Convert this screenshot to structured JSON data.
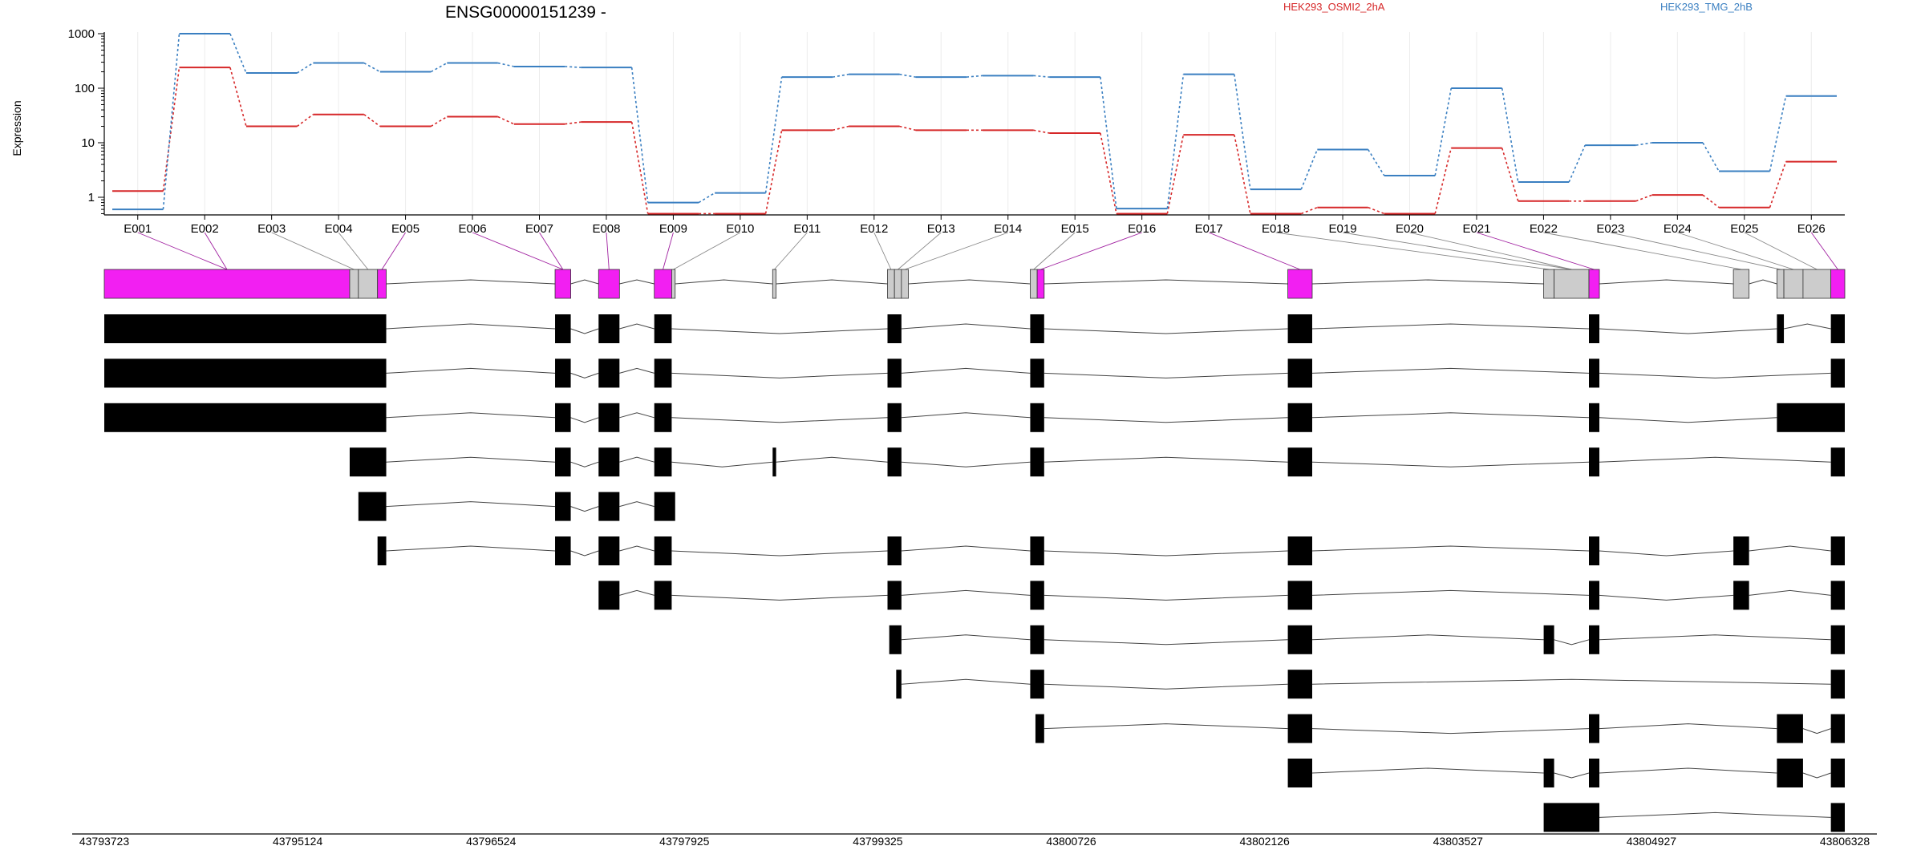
{
  "chart_data": {
    "type": "line",
    "title": "ENSG00000151239 -",
    "ylabel": "Expression",
    "y_scale": "log",
    "y_ticks": [
      1,
      10,
      100,
      1000
    ],
    "y_tick_labels": [
      "1",
      "10",
      "100",
      "1000"
    ],
    "exon_bins": [
      "E001",
      "E002",
      "E003",
      "E004",
      "E005",
      "E006",
      "E007",
      "E008",
      "E009",
      "E010",
      "E011",
      "E012",
      "E013",
      "E014",
      "E015",
      "E016",
      "E017",
      "E018",
      "E019",
      "E020",
      "E021",
      "E022",
      "E023",
      "E024",
      "E025",
      "E026"
    ],
    "series": [
      {
        "name": "HEK293_OSMI2_2hA",
        "color": "#d62728",
        "values": [
          1.3,
          240,
          20,
          33,
          20,
          30,
          22,
          24,
          0.5,
          0.5,
          17,
          20,
          17,
          17,
          15,
          0.5,
          14,
          0.5,
          0.65,
          0.5,
          8,
          0.85,
          0.85,
          1.1,
          0.65,
          4.5
        ]
      },
      {
        "name": "HEK293_TMG_2hB",
        "color": "#3a7fc1",
        "values": [
          0.6,
          1000,
          190,
          290,
          200,
          290,
          250,
          240,
          0.8,
          1.2,
          160,
          180,
          160,
          170,
          160,
          0.62,
          180,
          1.4,
          7.5,
          2.5,
          100,
          1.9,
          9,
          10,
          3,
          72
        ]
      }
    ],
    "genomic_axis": {
      "tick_labels": [
        "43793723",
        "43795124",
        "43796524",
        "43797925",
        "43799325",
        "43800726",
        "43802126",
        "43803527",
        "43804927",
        "43806328"
      ]
    },
    "gene_model": {
      "exon_parts": [
        {
          "start": 0.0,
          "end": 0.141,
          "color": "#f21ff2"
        },
        {
          "start": 0.141,
          "end": 0.146,
          "color": "#cccccc"
        },
        {
          "start": 0.146,
          "end": 0.157,
          "color": "#cccccc"
        },
        {
          "start": 0.157,
          "end": 0.162,
          "color": "#f21ff2"
        },
        {
          "start": 0.259,
          "end": 0.268,
          "color": "#f21ff2"
        },
        {
          "start": 0.284,
          "end": 0.296,
          "color": "#f21ff2"
        },
        {
          "start": 0.316,
          "end": 0.326,
          "color": "#f21ff2"
        },
        {
          "start": 0.326,
          "end": 0.328,
          "color": "#cccccc"
        },
        {
          "start": 0.384,
          "end": 0.386,
          "color": "#cccccc"
        },
        {
          "start": 0.45,
          "end": 0.454,
          "color": "#cccccc"
        },
        {
          "start": 0.454,
          "end": 0.458,
          "color": "#cccccc"
        },
        {
          "start": 0.458,
          "end": 0.462,
          "color": "#cccccc"
        },
        {
          "start": 0.532,
          "end": 0.536,
          "color": "#cccccc"
        },
        {
          "start": 0.536,
          "end": 0.54,
          "color": "#f21ff2"
        },
        {
          "start": 0.68,
          "end": 0.694,
          "color": "#f21ff2"
        },
        {
          "start": 0.827,
          "end": 0.833,
          "color": "#cccccc"
        },
        {
          "start": 0.833,
          "end": 0.853,
          "color": "#cccccc"
        },
        {
          "start": 0.853,
          "end": 0.859,
          "color": "#f21ff2"
        },
        {
          "start": 0.936,
          "end": 0.945,
          "color": "#cccccc"
        },
        {
          "start": 0.961,
          "end": 0.965,
          "color": "#cccccc"
        },
        {
          "start": 0.965,
          "end": 0.976,
          "color": "#cccccc"
        },
        {
          "start": 0.976,
          "end": 0.992,
          "color": "#cccccc"
        },
        {
          "start": 0.992,
          "end": 1.0,
          "color": "#f21ff2"
        }
      ],
      "bin_to_part": [
        0,
        0,
        1,
        2,
        3,
        4,
        4,
        5,
        6,
        7,
        8,
        9,
        10,
        11,
        12,
        13,
        14,
        15,
        16,
        16,
        17,
        18,
        19,
        20,
        21,
        22
      ],
      "transcripts": [
        [
          [
            0.0,
            0.162
          ],
          [
            0.259,
            0.268
          ],
          [
            0.284,
            0.296
          ],
          [
            0.316,
            0.326
          ],
          [
            0.45,
            0.458
          ],
          [
            0.532,
            0.54
          ],
          [
            0.68,
            0.694
          ],
          [
            0.853,
            0.859
          ],
          [
            0.961,
            0.965
          ],
          [
            0.992,
            1.0
          ]
        ],
        [
          [
            0.0,
            0.162
          ],
          [
            0.259,
            0.268
          ],
          [
            0.284,
            0.296
          ],
          [
            0.316,
            0.326
          ],
          [
            0.45,
            0.458
          ],
          [
            0.532,
            0.54
          ],
          [
            0.68,
            0.694
          ],
          [
            0.853,
            0.859
          ],
          [
            0.992,
            1.0
          ]
        ],
        [
          [
            0.0,
            0.162
          ],
          [
            0.259,
            0.268
          ],
          [
            0.284,
            0.296
          ],
          [
            0.316,
            0.326
          ],
          [
            0.45,
            0.458
          ],
          [
            0.532,
            0.54
          ],
          [
            0.68,
            0.694
          ],
          [
            0.853,
            0.859
          ],
          [
            0.961,
            1.0
          ]
        ],
        [
          [
            0.141,
            0.162
          ],
          [
            0.259,
            0.268
          ],
          [
            0.284,
            0.296
          ],
          [
            0.316,
            0.326
          ],
          [
            0.384,
            0.386
          ],
          [
            0.45,
            0.458
          ],
          [
            0.532,
            0.54
          ],
          [
            0.68,
            0.694
          ],
          [
            0.853,
            0.859
          ],
          [
            0.992,
            1.0
          ]
        ],
        [
          [
            0.146,
            0.162
          ],
          [
            0.259,
            0.268
          ],
          [
            0.284,
            0.296
          ],
          [
            0.316,
            0.328
          ]
        ],
        [
          [
            0.157,
            0.162
          ],
          [
            0.259,
            0.268
          ],
          [
            0.284,
            0.296
          ],
          [
            0.316,
            0.326
          ],
          [
            0.45,
            0.458
          ],
          [
            0.532,
            0.54
          ],
          [
            0.68,
            0.694
          ],
          [
            0.853,
            0.859
          ],
          [
            0.936,
            0.945
          ],
          [
            0.992,
            1.0
          ]
        ],
        [
          [
            0.284,
            0.296
          ],
          [
            0.316,
            0.326
          ],
          [
            0.45,
            0.458
          ],
          [
            0.532,
            0.54
          ],
          [
            0.68,
            0.694
          ],
          [
            0.853,
            0.859
          ],
          [
            0.936,
            0.945
          ],
          [
            0.992,
            1.0
          ]
        ],
        [
          [
            0.451,
            0.458
          ],
          [
            0.532,
            0.54
          ],
          [
            0.68,
            0.694
          ],
          [
            0.827,
            0.833
          ],
          [
            0.853,
            0.859
          ],
          [
            0.992,
            1.0
          ]
        ],
        [
          [
            0.455,
            0.458
          ],
          [
            0.532,
            0.54
          ],
          [
            0.68,
            0.694
          ],
          [
            0.992,
            1.0
          ]
        ],
        [
          [
            0.535,
            0.54
          ],
          [
            0.68,
            0.694
          ],
          [
            0.853,
            0.859
          ],
          [
            0.961,
            0.976
          ],
          [
            0.992,
            1.0
          ]
        ],
        [
          [
            0.68,
            0.694
          ],
          [
            0.827,
            0.833
          ],
          [
            0.853,
            0.859
          ],
          [
            0.961,
            0.976
          ],
          [
            0.992,
            1.0
          ]
        ],
        [
          [
            0.827,
            0.859
          ],
          [
            0.992,
            1.0
          ]
        ]
      ]
    }
  }
}
